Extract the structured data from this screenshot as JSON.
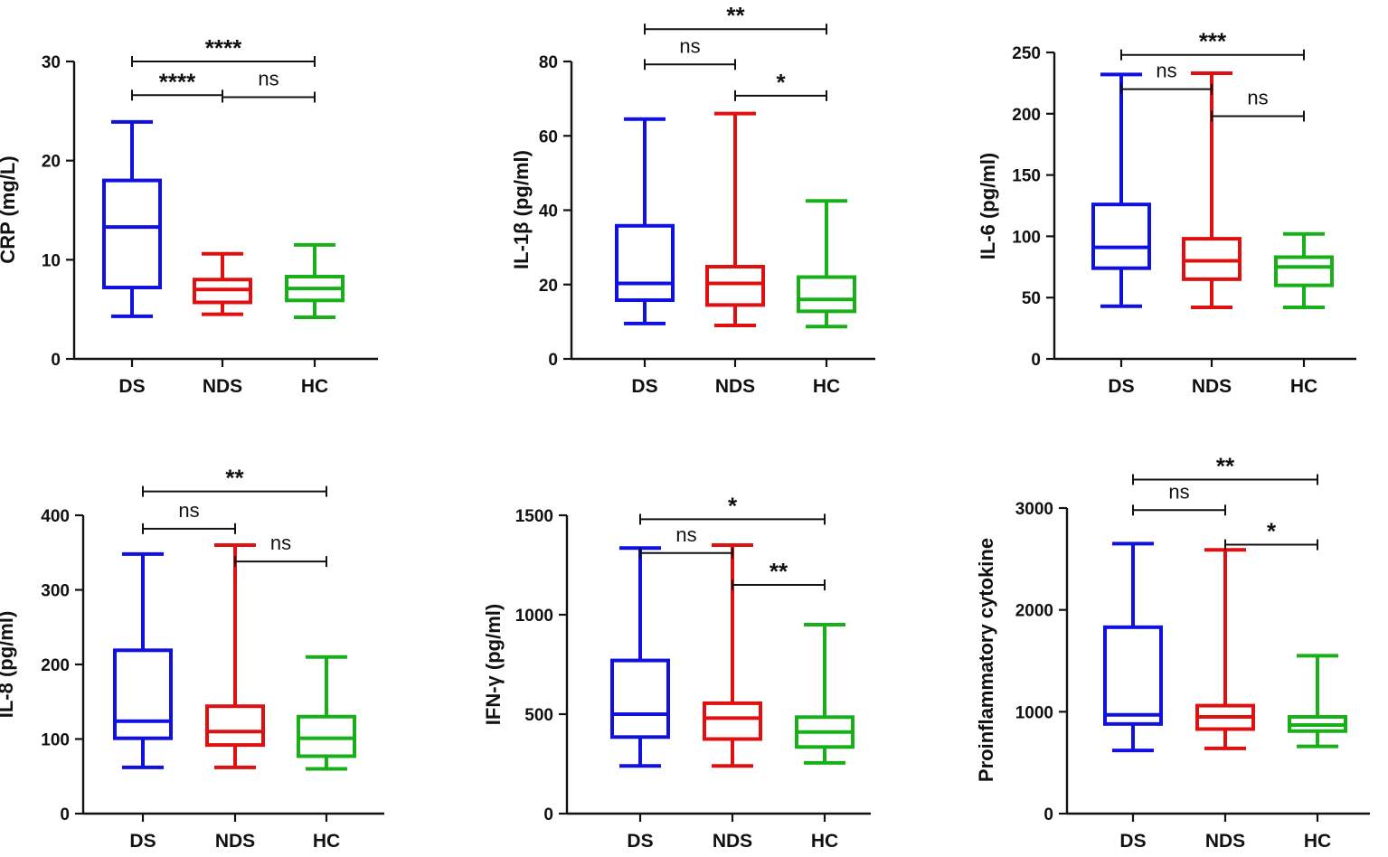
{
  "colors": {
    "DS": "#1010e0",
    "NDS": "#e01010",
    "HC": "#18b018",
    "axis": "#111111"
  },
  "chart_data": [
    {
      "type": "box",
      "ylabel": "CRP (mg/L)",
      "ylim": [
        0,
        30
      ],
      "yticks": [
        0,
        10,
        20,
        30
      ],
      "categories": [
        "DS",
        "NDS",
        "HC"
      ],
      "boxes": [
        {
          "group": "DS",
          "min": 4.3,
          "q1": 7.2,
          "median": 13.3,
          "q3": 18.0,
          "max": 23.9
        },
        {
          "group": "NDS",
          "min": 4.5,
          "q1": 5.7,
          "median": 7.0,
          "q3": 8.0,
          "max": 10.6
        },
        {
          "group": "HC",
          "min": 4.2,
          "q1": 5.9,
          "median": 7.1,
          "q3": 8.3,
          "max": 11.5
        }
      ],
      "significance": [
        {
          "from": "DS",
          "to": "HC",
          "label": "****",
          "level": 30.0
        },
        {
          "from": "DS",
          "to": "NDS",
          "label": "****",
          "level": 26.6
        },
        {
          "from": "NDS",
          "to": "HC",
          "label": "ns",
          "level": 26.4
        }
      ]
    },
    {
      "type": "box",
      "ylabel": "IL-1β (pg/ml)",
      "ylim": [
        0,
        80
      ],
      "yticks": [
        0,
        20,
        40,
        60,
        80
      ],
      "categories": [
        "DS",
        "NDS",
        "HC"
      ],
      "boxes": [
        {
          "group": "DS",
          "min": 9.5,
          "q1": 15.8,
          "median": 20.3,
          "q3": 35.8,
          "max": 64.5
        },
        {
          "group": "NDS",
          "min": 9.0,
          "q1": 14.5,
          "median": 20.3,
          "q3": 24.8,
          "max": 66.0
        },
        {
          "group": "HC",
          "min": 8.7,
          "q1": 12.8,
          "median": 16.0,
          "q3": 22.0,
          "max": 42.5
        }
      ],
      "significance": [
        {
          "from": "DS",
          "to": "HC",
          "label": "**",
          "level": 88.7
        },
        {
          "from": "DS",
          "to": "NDS",
          "label": "ns",
          "level": 79.2
        },
        {
          "from": "NDS",
          "to": "HC",
          "label": "*",
          "level": 70.8
        }
      ]
    },
    {
      "type": "box",
      "ylabel": "IL-6 (pg/ml)",
      "ylim": [
        0,
        250
      ],
      "yticks": [
        0,
        50,
        100,
        150,
        200,
        250
      ],
      "categories": [
        "DS",
        "NDS",
        "HC"
      ],
      "boxes": [
        {
          "group": "DS",
          "min": 43,
          "q1": 74,
          "median": 91,
          "q3": 126,
          "max": 232
        },
        {
          "group": "NDS",
          "min": 42,
          "q1": 65,
          "median": 80,
          "q3": 98,
          "max": 233
        },
        {
          "group": "HC",
          "min": 42,
          "q1": 60,
          "median": 75,
          "q3": 83,
          "max": 102
        }
      ],
      "significance": [
        {
          "from": "DS",
          "to": "HC",
          "label": "***",
          "level": 248
        },
        {
          "from": "DS",
          "to": "NDS",
          "label": "ns",
          "level": 220
        },
        {
          "from": "NDS",
          "to": "HC",
          "label": "ns",
          "level": 198
        }
      ]
    },
    {
      "type": "box",
      "ylabel": "IL-8 (pg/ml)",
      "ylim": [
        0,
        400
      ],
      "yticks": [
        0,
        100,
        200,
        300,
        400
      ],
      "categories": [
        "DS",
        "NDS",
        "HC"
      ],
      "boxes": [
        {
          "group": "DS",
          "min": 62,
          "q1": 101,
          "median": 124,
          "q3": 219,
          "max": 348
        },
        {
          "group": "NDS",
          "min": 62,
          "q1": 92,
          "median": 110,
          "q3": 144,
          "max": 360
        },
        {
          "group": "HC",
          "min": 60,
          "q1": 77,
          "median": 101,
          "q3": 130,
          "max": 210
        }
      ],
      "significance": [
        {
          "from": "DS",
          "to": "HC",
          "label": "**",
          "level": 432
        },
        {
          "from": "DS",
          "to": "NDS",
          "label": "ns",
          "level": 382
        },
        {
          "from": "NDS",
          "to": "HC",
          "label": "ns",
          "level": 338
        }
      ]
    },
    {
      "type": "box",
      "ylabel": "IFN-γ (pg/ml)",
      "ylim": [
        0,
        1500
      ],
      "yticks": [
        0,
        500,
        1000,
        1500
      ],
      "categories": [
        "DS",
        "NDS",
        "HC"
      ],
      "boxes": [
        {
          "group": "DS",
          "min": 240,
          "q1": 385,
          "median": 500,
          "q3": 770,
          "max": 1335
        },
        {
          "group": "NDS",
          "min": 240,
          "q1": 375,
          "median": 480,
          "q3": 555,
          "max": 1350
        },
        {
          "group": "HC",
          "min": 255,
          "q1": 335,
          "median": 410,
          "q3": 485,
          "max": 950
        }
      ],
      "significance": [
        {
          "from": "DS",
          "to": "HC",
          "label": "*",
          "level": 1480
        },
        {
          "from": "DS",
          "to": "NDS",
          "label": "ns",
          "level": 1310
        },
        {
          "from": "NDS",
          "to": "HC",
          "label": "**",
          "level": 1150
        }
      ]
    },
    {
      "type": "box",
      "ylabel": "Proinflammatory cytokine",
      "ylim": [
        0,
        3000
      ],
      "yticks": [
        0,
        1000,
        2000,
        3000
      ],
      "categories": [
        "DS",
        "NDS",
        "HC"
      ],
      "boxes": [
        {
          "group": "DS",
          "min": 620,
          "q1": 880,
          "median": 970,
          "q3": 1830,
          "max": 2650
        },
        {
          "group": "NDS",
          "min": 640,
          "q1": 830,
          "median": 950,
          "q3": 1060,
          "max": 2590
        },
        {
          "group": "HC",
          "min": 660,
          "q1": 810,
          "median": 870,
          "q3": 950,
          "max": 1550
        }
      ],
      "significance": [
        {
          "from": "DS",
          "to": "HC",
          "label": "**",
          "level": 3280
        },
        {
          "from": "DS",
          "to": "NDS",
          "label": "ns",
          "level": 2980
        },
        {
          "from": "NDS",
          "to": "HC",
          "label": "*",
          "level": 2640
        }
      ]
    }
  ]
}
